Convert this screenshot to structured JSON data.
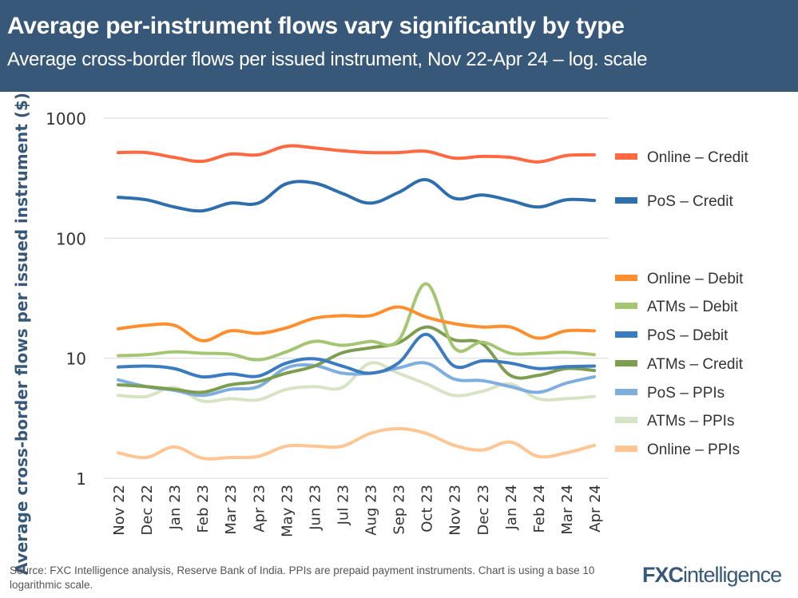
{
  "header": {
    "title": "Average per-instrument flows vary significantly by type",
    "subtitle": "Average cross-border flows per issued instrument, Nov 22-Apr 24 – log. scale"
  },
  "footer": {
    "source": "Source: FXC Intelligence analysis, Reserve Bank of India. PPIs are prepaid payment instruments. Chart is using a base 10 logarithmic scale.",
    "logo": "FXCintelligence"
  },
  "chart_data": {
    "type": "line",
    "ylabel": "Average cross-border flows per issued instrument ($)",
    "xlabel": "",
    "yscale": "log10",
    "ylim": [
      1,
      1000
    ],
    "yticks": [
      "1000",
      "100",
      "10",
      "1"
    ],
    "grid": true,
    "legend": "right",
    "categories": [
      "Nov 22",
      "Dec 22",
      "Jan 23",
      "Feb 23",
      "Mar 23",
      "Apr 23",
      "May 23",
      "Jun 23",
      "Jul 23",
      "Aug 23",
      "Sep 23",
      "Oct 23",
      "Nov 23",
      "Dec 23",
      "Jan 24",
      "Feb 24",
      "Mar 24",
      "Apr 24"
    ],
    "series": [
      {
        "name": "Online – Credit",
        "color": "#ff6841",
        "values": [
          517,
          517,
          471,
          437,
          502,
          495,
          584,
          565,
          535,
          517,
          517,
          530,
          465,
          480,
          471,
          432,
          488,
          495
        ]
      },
      {
        "name": "PoS – Credit",
        "color": "#2e6ead",
        "values": [
          219,
          209,
          182,
          169,
          196,
          196,
          284,
          288,
          236,
          196,
          240,
          307,
          215,
          229,
          206,
          182,
          209,
          206
        ]
      },
      {
        "name": "Online – Debit",
        "color": "#ff8f2e",
        "values": [
          17.6,
          18.8,
          18.8,
          14.0,
          16.9,
          16.1,
          17.9,
          21.5,
          22.6,
          22.6,
          26.7,
          22.0,
          19.4,
          18.2,
          18.2,
          14.7,
          16.9,
          16.9
        ]
      },
      {
        "name": "ATMs – Debit",
        "color": "#a4c672",
        "values": [
          10.5,
          10.7,
          11.3,
          11.0,
          10.8,
          9.7,
          11.3,
          13.8,
          12.8,
          13.8,
          14.0,
          41.7,
          12.2,
          13.6,
          11.0,
          11.0,
          11.2,
          10.7
        ]
      },
      {
        "name": "PoS – Debit",
        "color": "#3b7bbf",
        "values": [
          8.45,
          8.6,
          8.2,
          7.0,
          7.4,
          7.1,
          9.1,
          9.9,
          8.6,
          7.5,
          9.1,
          15.8,
          8.6,
          9.5,
          9.1,
          8.2,
          8.5,
          8.6
        ]
      },
      {
        "name": "ATMs – Credit",
        "color": "#7d9e50",
        "values": [
          6.0,
          5.8,
          5.5,
          5.2,
          6.0,
          6.4,
          7.5,
          8.6,
          11.1,
          12.2,
          13.4,
          18.2,
          14.2,
          13.2,
          7.2,
          7.2,
          8.2,
          7.9
        ]
      },
      {
        "name": "PoS – PPIs",
        "color": "#7eaee0",
        "values": [
          6.6,
          5.8,
          5.4,
          4.9,
          5.5,
          5.8,
          8.3,
          8.7,
          7.5,
          7.5,
          8.3,
          9.1,
          6.7,
          6.5,
          5.8,
          5.2,
          6.2,
          7.0
        ]
      },
      {
        "name": "ATMs – PPIs",
        "color": "#d6e4c3",
        "values": [
          4.9,
          4.8,
          5.7,
          4.4,
          4.6,
          4.5,
          5.5,
          5.8,
          5.7,
          9.1,
          7.5,
          6.1,
          4.9,
          5.3,
          6.1,
          4.6,
          4.6,
          4.8
        ]
      },
      {
        "name": "Online – PPIs",
        "color": "#ffc592",
        "values": [
          1.63,
          1.49,
          1.82,
          1.47,
          1.49,
          1.52,
          1.85,
          1.85,
          1.85,
          2.36,
          2.59,
          2.36,
          1.88,
          1.72,
          2.0,
          1.52,
          1.63,
          1.88
        ]
      }
    ]
  }
}
